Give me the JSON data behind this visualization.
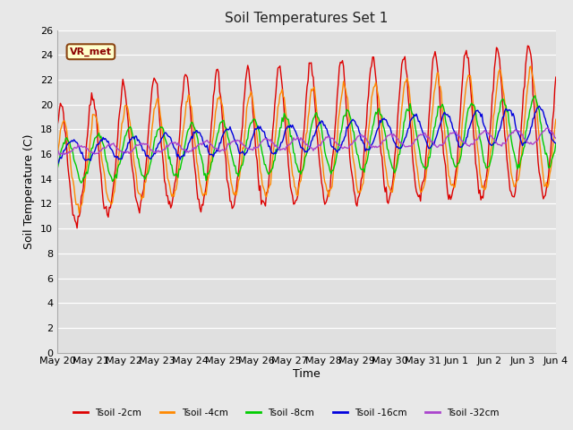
{
  "title": "Soil Temperatures Set 1",
  "xlabel": "Time",
  "ylabel": "Soil Temperature (C)",
  "ylim": [
    0,
    26
  ],
  "yticks": [
    0,
    2,
    4,
    6,
    8,
    10,
    12,
    14,
    16,
    18,
    20,
    22,
    24,
    26
  ],
  "fig_bg_color": "#e8e8e8",
  "plot_bg_color": "#e0e0e0",
  "line_colors": [
    "#dd0000",
    "#ff8800",
    "#00cc00",
    "#0000dd",
    "#aa44cc"
  ],
  "line_labels": [
    "Tsoil -2cm",
    "Tsoil -4cm",
    "Tsoil -8cm",
    "Tsoil -16cm",
    "Tsoil -32cm"
  ],
  "annotation_text": "VR_met",
  "x_tick_labels": [
    "May 20",
    "May 21",
    "May 22",
    "May 23",
    "May 24",
    "May 25",
    "May 26",
    "May 27",
    "May 28",
    "May 29",
    "May 30",
    "May 31",
    "Jun 1",
    "Jun 2",
    "Jun 3",
    "Jun 4"
  ],
  "n_points": 480
}
